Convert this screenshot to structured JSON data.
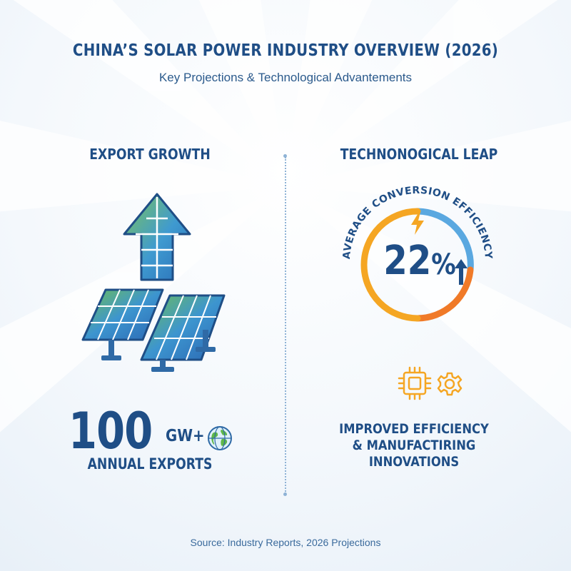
{
  "header": {
    "title": "CHINA’S SOLAR POWER INDUSTRY OVERVIEW (2026)",
    "subtitle": "Key Projections & Technological Advantements"
  },
  "export_section": {
    "heading": "EXPORT GROWTH",
    "value": "100",
    "unit": "GW+",
    "label": "ANNUAL EXPORTS",
    "icons": [
      "arrow-up-solar-icon",
      "solar-panels-icon",
      "globe-icon"
    ]
  },
  "tech_section": {
    "heading": "TECHNONOGICAL LEAP",
    "ring_label": "AVERAGE CONVERSION EFFICIENCY",
    "value": "22",
    "value_symbol": "%",
    "innovation_lines": [
      "IMPROVED EFFICIENCY",
      "& MANUFACTIRING",
      "INNOVATIONS"
    ],
    "icons": [
      "lightning-icon",
      "arrow-up-icon",
      "chip-icon",
      "gear-icon"
    ]
  },
  "footer": {
    "source": "Source: Industry Reports, 2026 Projections"
  },
  "colors": {
    "navy": "#1f4e86",
    "orange": "#f5a623",
    "blue": "#5aa8e0",
    "green": "#6fbf55"
  }
}
